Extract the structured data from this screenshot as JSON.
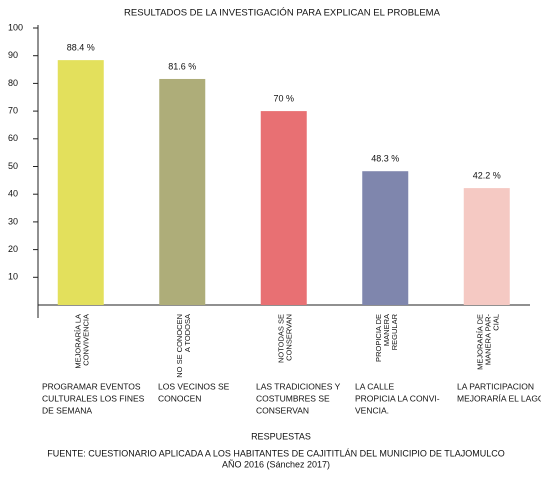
{
  "chart_data": {
    "type": "bar",
    "title": "RESULTADOS DE LA INVESTIGACIÓN  PARA EXPLICAN EL PROBLEMA",
    "categories": [
      [
        "MEJORARÍA LA",
        "CONVIVENCIA"
      ],
      [
        "NO SE CONOCEN",
        "A TODOSA"
      ],
      [
        "NOTODAS  SE",
        "CONSERVAN"
      ],
      [
        "PROPICIA DE",
        "MANERA",
        "REGULAR"
      ],
      [
        "MEJORARÍA DE",
        "MANERA PAR-",
        "CIAL"
      ]
    ],
    "descriptions": [
      [
        "PROGRAMAR EVENTOS",
        "CULTURALES LOS FINES",
        "DE SEMANA"
      ],
      [
        "LOS VECINOS SE",
        "CONOCEN"
      ],
      [
        "LAS TRADICIONES Y",
        "COSTUMBRES SE",
        "CONSERVAN"
      ],
      [
        "LA CALLE",
        "PROPICIA LA CONVI-",
        "VENCIA."
      ],
      [
        "LA PARTICIPACION",
        "MEJORARÍA EL LAGO"
      ]
    ],
    "values": [
      88.4,
      81.6,
      70,
      48.3,
      42.2
    ],
    "value_labels": [
      "88.4 %",
      "81.6 %",
      "70 %",
      "48.3 %",
      "42.2 %"
    ],
    "colors": [
      "#e3e05c",
      "#aead79",
      "#e87073",
      "#7f86ad",
      "#f5c9c3"
    ],
    "ylim": [
      0,
      100
    ],
    "yticks": [
      10,
      20,
      30,
      40,
      50,
      60,
      70,
      80,
      90,
      100
    ],
    "xlabel": "RESPUESTAS",
    "source": [
      "FUENTE: CUESTIONARIO APLICADA A LOS HABITANTES DE CAJITITLÁN DEL MUNICIPIO DE TLAJOMULCO",
      "AÑO 2016 (Sánchez 2017)"
    ]
  }
}
